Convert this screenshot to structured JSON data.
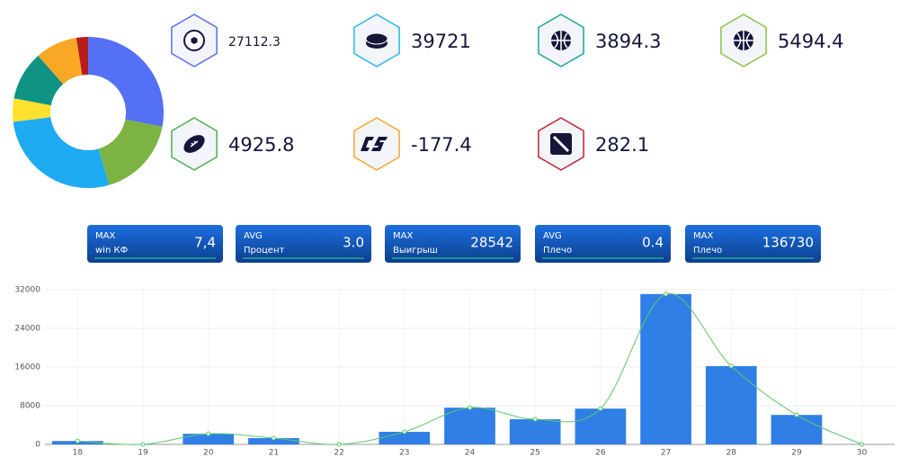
{
  "chart_data": [
    {
      "type": "donut",
      "values": [
        28,
        17.5,
        27.5,
        5,
        10.5,
        9,
        2.5
      ],
      "colors": [
        "#5470f5",
        "#7cb342",
        "#1eaaf1",
        "#fde12d",
        "#0e9384",
        "#f9a825",
        "#b71c1c"
      ]
    },
    {
      "type": "bar",
      "categories": [
        "18",
        "19",
        "20",
        "21",
        "22",
        "23",
        "24",
        "25",
        "26",
        "27",
        "28",
        "29",
        "30"
      ],
      "series": [
        {
          "type": "bar",
          "color": "#2f7fe6",
          "values": [
            700,
            0,
            2200,
            1300,
            0,
            2600,
            7600,
            5200,
            7400,
            31100,
            16200,
            6100,
            0
          ]
        },
        {
          "type": "line",
          "color": "#5cc96b",
          "values": [
            700,
            0,
            2200,
            1300,
            0,
            2600,
            7600,
            5200,
            7400,
            31100,
            16200,
            6100,
            0
          ]
        }
      ],
      "ylim": [
        0,
        32000
      ],
      "yticks": [
        0,
        8000,
        16000,
        24000,
        32000
      ],
      "grid": true
    }
  ],
  "tiles": [
    {
      "value": "27112.3",
      "color": "#5b6cf0"
    },
    {
      "value": "39721",
      "color": "#29b6e6"
    },
    {
      "value": "3894.3",
      "color": "#1aa39a"
    },
    {
      "value": "5494.4",
      "color": "#8bc34a"
    },
    {
      "value": "4925.8",
      "color": "#4caf50"
    },
    {
      "value": "-177.4",
      "color": "#f0a830"
    },
    {
      "value": "282.1",
      "color": "#c0202c"
    }
  ],
  "kpis": [
    {
      "kind": "MAX",
      "label": "win КФ",
      "value": "7,4"
    },
    {
      "kind": "AVG",
      "label": "Процент",
      "value": "3.0"
    },
    {
      "kind": "MAX",
      "label": "Выигрыш",
      "value": "28542"
    },
    {
      "kind": "AVG",
      "label": "Плечо",
      "value": "0.4"
    },
    {
      "kind": "MAX",
      "label": "Плечо",
      "value": "136730"
    }
  ]
}
